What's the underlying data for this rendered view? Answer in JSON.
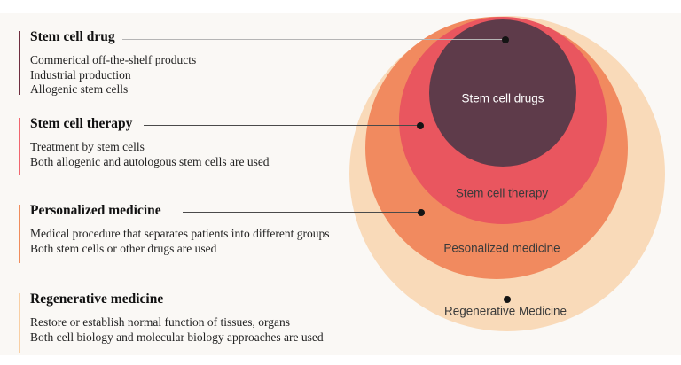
{
  "figure": {
    "background_color": "#faf8f5"
  },
  "diagram": {
    "circles": [
      {
        "id": "stem-cell-drugs",
        "label": "Stem cell drugs",
        "fill_color": "#5e3b4a",
        "text_color": "#ffffff"
      },
      {
        "id": "stem-cell-therapy",
        "label": "Stem cell therapy",
        "fill_color": "#e9565f",
        "text_color": "#3a3a3a"
      },
      {
        "id": "personalized-medicine",
        "label": "Pesonalized medicine",
        "fill_color": "#f18a5f",
        "text_color": "#3a3a3a"
      },
      {
        "id": "regenerative-medicine",
        "label": "Regenerative Medicine",
        "fill_color": "#f9dab9",
        "text_color": "#3a3a3a"
      }
    ],
    "connector_dot_color": "#141414",
    "connector_line_colors": [
      "#b5b5b5",
      "#4a4a4a",
      "#4a4a4a",
      "#4a4a4a"
    ]
  },
  "legend": {
    "blocks": [
      {
        "heading": "Stem cell drug",
        "accent_color": "#6f2e3f",
        "lines": [
          "Commerical off-the-shelf products",
          "Industrial production",
          "Allogenic stem cells"
        ]
      },
      {
        "heading": "Stem cell therapy",
        "accent_color": "#f1666f",
        "lines": [
          "Treatment by stem cells",
          "Both allogenic and autologous stem cells are used"
        ]
      },
      {
        "heading": "Personalized medicine",
        "accent_color": "#f08c5c",
        "lines": [
          "Medical procedure that separates patients into different groups",
          "Both stem cells or other drugs are used"
        ]
      },
      {
        "heading": "Regenerative medicine",
        "accent_color": "#f8cfa4",
        "lines": [
          "Restore or establish normal function of tissues, organs",
          "Both cell biology and molecular biology approaches are used"
        ]
      }
    ]
  }
}
